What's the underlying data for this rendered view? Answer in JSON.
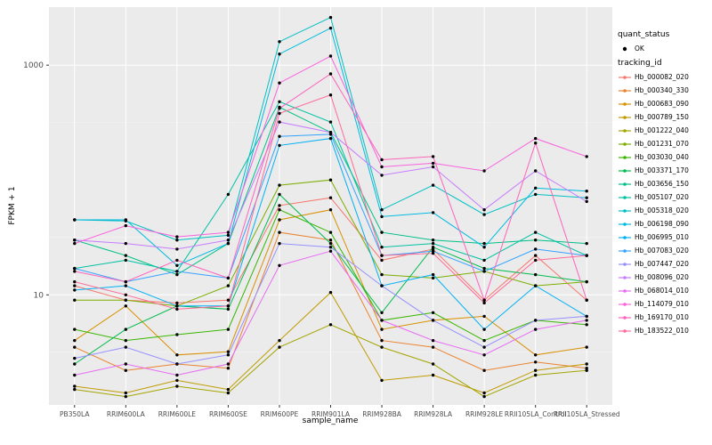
{
  "chart_data": {
    "type": "line",
    "title": "",
    "xlabel": "sample_name",
    "ylabel": "FPKM + 1",
    "y_scale": "log10",
    "ylim": [
      1.1,
      3200
    ],
    "y_ticks": [
      10,
      1000
    ],
    "y_tick_labels": [
      "10",
      "1000"
    ],
    "y_minor": [
      3.16,
      31.6,
      316
    ],
    "grid": true,
    "legend_position": "right",
    "colors": {
      "panel_bg": "#EBEBEB",
      "grid_major": "#FFFFFF",
      "grid_minor": "#F5F5F5",
      "point": "#000000",
      "tick_text": "#4D4D4D",
      "axis_tick": "#333333"
    },
    "categories": [
      "PB350LA",
      "RRIM600LA",
      "RRIM600LE",
      "RRIM600SE",
      "RRIM600PE",
      "RRIM901LA",
      "RRIM928BA",
      "RRIM928LA",
      "RRIM928LE",
      "RRII105LA_Control",
      "RRII105LA_Stressed"
    ],
    "series": [
      {
        "name": "Hb_000082_020",
        "color": "#F8766D",
        "values": [
          12,
          9,
          8.5,
          9,
          60,
          70,
          20,
          25,
          9,
          22,
          9
        ]
      },
      {
        "name": "Hb_000340_330",
        "color": "#EA8331",
        "values": [
          3.5,
          2.2,
          2.5,
          2.3,
          35,
          30,
          4,
          3.5,
          2.2,
          2.6,
          2.3
        ]
      },
      {
        "name": "Hb_000683_090",
        "color": "#D89000",
        "values": [
          4,
          8,
          3,
          3.2,
          45,
          55,
          5,
          6,
          6.5,
          3,
          3.5
        ]
      },
      {
        "name": "Hb_000789_150",
        "color": "#C09B00",
        "values": [
          1.6,
          1.4,
          1.8,
          1.5,
          4,
          10.5,
          1.8,
          2,
          1.4,
          2.2,
          2.5
        ]
      },
      {
        "name": "Hb_001222_040",
        "color": "#A3A500",
        "values": [
          1.5,
          1.3,
          1.6,
          1.4,
          3.5,
          5.5,
          3.5,
          2.5,
          1.3,
          2,
          2.2
        ]
      },
      {
        "name": "Hb_001231_070",
        "color": "#7CAE00",
        "values": [
          9,
          9,
          8,
          12,
          90,
          100,
          15,
          14,
          16,
          12,
          13
        ]
      },
      {
        "name": "Hb_003030_040",
        "color": "#39B600",
        "values": [
          5,
          4,
          4.5,
          5,
          55,
          35,
          6,
          7,
          4,
          6,
          5.5
        ]
      },
      {
        "name": "Hb_003371_170",
        "color": "#00BB4E",
        "values": [
          2.5,
          5,
          8,
          7.5,
          75,
          28,
          7,
          26,
          17,
          15,
          13
        ]
      },
      {
        "name": "Hb_003656_150",
        "color": "#00C087",
        "values": [
          30,
          22,
          15,
          28,
          430,
          260,
          35,
          30,
          28,
          30,
          28
        ]
      },
      {
        "name": "Hb_005107_020",
        "color": "#00C1A3",
        "values": [
          17,
          20,
          16,
          75,
          480,
          320,
          26,
          28,
          20,
          35,
          22
        ]
      },
      {
        "name": "Hb_005318_020",
        "color": "#00BFC4",
        "values": [
          45,
          44,
          30,
          33,
          1600,
          2600,
          55,
          90,
          50,
          75,
          70
        ]
      },
      {
        "name": "Hb_006198_090",
        "color": "#00BAE0",
        "values": [
          45,
          45,
          18,
          28,
          1250,
          2100,
          48,
          52,
          26,
          85,
          80
        ]
      },
      {
        "name": "Hb_006995_010",
        "color": "#00B0F6",
        "values": [
          11,
          12,
          8,
          8,
          200,
          230,
          12,
          15,
          5,
          12,
          6.5
        ]
      },
      {
        "name": "Hb_007083_020",
        "color": "#35A2FF",
        "values": [
          17,
          13,
          16,
          14,
          240,
          250,
          22,
          24,
          16,
          25,
          22
        ]
      },
      {
        "name": "Hb_007447_020",
        "color": "#9590FF",
        "values": [
          2.8,
          3.5,
          2.5,
          3,
          28,
          26,
          12,
          6,
          3.5,
          6,
          6.5
        ]
      },
      {
        "name": "Hb_008096_020",
        "color": "#C77CFF",
        "values": [
          30,
          28,
          25,
          30,
          320,
          260,
          110,
          130,
          55,
          120,
          65
        ]
      },
      {
        "name": "Hb_068014_010",
        "color": "#E76BF3",
        "values": [
          2,
          2.5,
          2,
          2.5,
          18,
          24,
          6,
          4,
          3,
          5,
          6
        ]
      },
      {
        "name": "Hb_114079_010",
        "color": "#FA62DB",
        "values": [
          28,
          40,
          32,
          35,
          700,
          1200,
          130,
          140,
          120,
          230,
          160
        ]
      },
      {
        "name": "Hb_169170_010",
        "color": "#FF62BC",
        "values": [
          16,
          13,
          20,
          14,
          420,
          840,
          150,
          160,
          9,
          210,
          9
        ]
      },
      {
        "name": "Hb_183522_010",
        "color": "#FF6A98",
        "values": [
          13,
          10,
          7.5,
          8,
          380,
          550,
          22,
          23,
          8.5,
          20,
          22
        ]
      }
    ],
    "legend": {
      "quant_status_title": "quant_status",
      "quant_status_items": [
        "OK"
      ],
      "tracking_title": "tracking_id"
    }
  }
}
